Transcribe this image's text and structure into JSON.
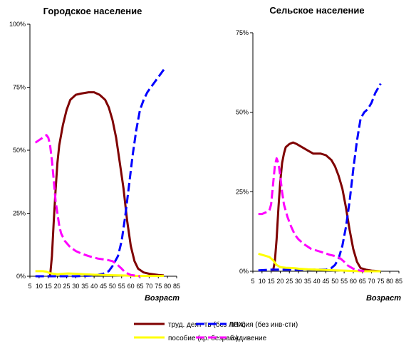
{
  "chart_data": [
    {
      "type": "line",
      "title": "Городское население",
      "xlabel": "Возраст",
      "ylabel": "",
      "x_ticks": [
        5,
        10,
        15,
        20,
        25,
        30,
        35,
        40,
        45,
        50,
        55,
        60,
        65,
        70,
        75,
        80,
        85
      ],
      "y_ticks": [
        "0%",
        "25%",
        "50%",
        "75%",
        "100%"
      ],
      "xlim": [
        5,
        85
      ],
      "ylim": [
        0,
        100
      ],
      "series": [
        {
          "key": "labor",
          "color": "#7f0000",
          "dash": "solid",
          "points": [
            [
              16,
              0
            ],
            [
              17,
              8
            ],
            [
              18,
              22
            ],
            [
              19,
              34
            ],
            [
              20,
              45
            ],
            [
              21,
              52
            ],
            [
              23,
              60
            ],
            [
              25,
              66
            ],
            [
              27,
              70
            ],
            [
              30,
              72
            ],
            [
              33,
              72.5
            ],
            [
              37,
              73
            ],
            [
              40,
              73
            ],
            [
              43,
              72
            ],
            [
              46,
              70
            ],
            [
              48,
              67
            ],
            [
              50,
              62
            ],
            [
              52,
              55
            ],
            [
              54,
              45
            ],
            [
              56,
              35
            ],
            [
              58,
              22
            ],
            [
              60,
              12
            ],
            [
              62,
              6
            ],
            [
              64,
              3
            ],
            [
              67,
              1.5
            ],
            [
              70,
              1
            ],
            [
              75,
              0.5
            ],
            [
              78,
              0.3
            ]
          ]
        },
        {
          "key": "pension",
          "color": "#0000ff",
          "dash": "dashed",
          "points": [
            [
              8,
              0
            ],
            [
              30,
              0
            ],
            [
              40,
              0.3
            ],
            [
              45,
              1
            ],
            [
              48,
              2
            ],
            [
              50,
              4
            ],
            [
              53,
              8
            ],
            [
              55,
              14
            ],
            [
              57,
              24
            ],
            [
              59,
              36
            ],
            [
              61,
              48
            ],
            [
              63,
              58
            ],
            [
              65,
              66
            ],
            [
              67,
              70
            ],
            [
              69,
              73
            ],
            [
              71,
              75
            ],
            [
              73,
              77
            ],
            [
              75,
              79
            ],
            [
              77,
              81
            ],
            [
              78,
              82
            ]
          ]
        },
        {
          "key": "benefit",
          "color": "#ffff00",
          "dash": "solid",
          "points": [
            [
              8,
              2
            ],
            [
              12,
              2
            ],
            [
              14,
              1.8
            ],
            [
              16,
              1.2
            ],
            [
              18,
              1
            ],
            [
              20,
              0.8
            ],
            [
              23,
              1
            ],
            [
              26,
              1.1
            ],
            [
              30,
              1
            ],
            [
              35,
              0.8
            ],
            [
              40,
              0.6
            ],
            [
              45,
              0.5
            ],
            [
              50,
              0.4
            ],
            [
              55,
              0.3
            ],
            [
              60,
              0.2
            ],
            [
              65,
              0.1
            ],
            [
              70,
              0.1
            ],
            [
              78,
              0.1
            ]
          ]
        },
        {
          "key": "dependent",
          "color": "#ff00ff",
          "dash": "dashed",
          "points": [
            [
              8,
              53
            ],
            [
              10,
              54
            ],
            [
              12,
              55
            ],
            [
              14,
              56
            ],
            [
              15,
              55
            ],
            [
              16,
              52
            ],
            [
              17,
              46
            ],
            [
              18,
              38
            ],
            [
              19,
              30
            ],
            [
              20,
              25
            ],
            [
              21,
              20
            ],
            [
              22,
              17
            ],
            [
              24,
              14
            ],
            [
              27,
              11.5
            ],
            [
              30,
              10
            ],
            [
              33,
              9
            ],
            [
              37,
              8
            ],
            [
              42,
              7
            ],
            [
              47,
              6.5
            ],
            [
              50,
              6
            ],
            [
              52,
              5
            ],
            [
              55,
              3
            ],
            [
              57,
              1.5
            ],
            [
              60,
              0.5
            ],
            [
              63,
              0.2
            ],
            [
              65,
              0
            ]
          ]
        }
      ]
    },
    {
      "type": "line",
      "title": "Сельское население",
      "xlabel": "Возраст",
      "ylabel": "",
      "x_ticks": [
        5,
        10,
        15,
        20,
        25,
        30,
        35,
        40,
        45,
        50,
        55,
        60,
        65,
        70,
        75,
        80,
        85
      ],
      "y_ticks": [
        "0%",
        "25%",
        "50%",
        "75%"
      ],
      "xlim": [
        5,
        85
      ],
      "ylim": [
        0,
        75
      ],
      "series": [
        {
          "key": "labor",
          "color": "#7f0000",
          "dash": "solid",
          "points": [
            [
              16,
              0
            ],
            [
              17,
              3
            ],
            [
              18,
              10
            ],
            [
              19,
              20
            ],
            [
              20,
              28
            ],
            [
              21,
              34
            ],
            [
              22,
              37
            ],
            [
              23,
              39
            ],
            [
              25,
              40
            ],
            [
              27,
              40.5
            ],
            [
              29,
              40
            ],
            [
              32,
              39
            ],
            [
              35,
              38
            ],
            [
              38,
              37
            ],
            [
              42,
              37
            ],
            [
              45,
              36.5
            ],
            [
              48,
              35
            ],
            [
              50,
              33
            ],
            [
              52,
              30
            ],
            [
              54,
              26
            ],
            [
              56,
              20
            ],
            [
              58,
              13
            ],
            [
              60,
              7
            ],
            [
              62,
              3
            ],
            [
              64,
              1
            ],
            [
              67,
              0.5
            ],
            [
              70,
              0.2
            ],
            [
              75,
              0
            ]
          ]
        },
        {
          "key": "pension",
          "color": "#0000ff",
          "dash": "dashed",
          "points": [
            [
              8,
              0.3
            ],
            [
              15,
              0.5
            ],
            [
              30,
              0.5
            ],
            [
              40,
              0.5
            ],
            [
              45,
              0.5
            ],
            [
              48,
              1
            ],
            [
              50,
              2
            ],
            [
              52,
              4
            ],
            [
              54,
              8
            ],
            [
              56,
              14
            ],
            [
              58,
              22
            ],
            [
              60,
              32
            ],
            [
              62,
              41
            ],
            [
              64,
              48
            ],
            [
              66,
              50
            ],
            [
              68,
              51
            ],
            [
              70,
              53
            ],
            [
              72,
              56
            ],
            [
              74,
              58
            ],
            [
              75,
              59
            ]
          ]
        },
        {
          "key": "benefit",
          "color": "#ffff00",
          "dash": "solid",
          "points": [
            [
              8,
              5.5
            ],
            [
              11,
              5
            ],
            [
              14,
              4.5
            ],
            [
              16,
              3.5
            ],
            [
              18,
              2
            ],
            [
              20,
              1.3
            ],
            [
              23,
              1.1
            ],
            [
              27,
              1
            ],
            [
              30,
              0.8
            ],
            [
              35,
              0.6
            ],
            [
              40,
              0.5
            ],
            [
              45,
              0.4
            ],
            [
              50,
              0.3
            ],
            [
              55,
              0.2
            ],
            [
              60,
              0.1
            ],
            [
              65,
              0
            ],
            [
              75,
              0
            ]
          ]
        },
        {
          "key": "dependent",
          "color": "#ff00ff",
          "dash": "dashed",
          "points": [
            [
              8,
              18
            ],
            [
              10,
              18
            ],
            [
              12,
              18.5
            ],
            [
              14,
              19
            ],
            [
              15,
              21
            ],
            [
              16,
              27
            ],
            [
              17,
              33
            ],
            [
              18,
              35.5
            ],
            [
              19,
              34
            ],
            [
              20,
              30
            ],
            [
              21,
              25
            ],
            [
              22,
              21
            ],
            [
              24,
              17
            ],
            [
              26,
              14
            ],
            [
              28,
              11.5
            ],
            [
              30,
              10
            ],
            [
              33,
              8.5
            ],
            [
              37,
              7
            ],
            [
              40,
              6.5
            ],
            [
              44,
              5.8
            ],
            [
              47,
              5.2
            ],
            [
              50,
              4.8
            ],
            [
              53,
              4
            ],
            [
              55,
              3
            ],
            [
              57,
              1.8
            ],
            [
              60,
              0.8
            ],
            [
              63,
              0.3
            ],
            [
              66,
              0
            ]
          ]
        }
      ]
    }
  ],
  "legend": [
    {
      "key": "labor",
      "label": "труд. деят-ть (без ЛПХ)",
      "color": "#7f0000",
      "dash": "solid"
    },
    {
      "key": "pension",
      "label": "пенсия (без инв-сти)",
      "color": "#0000ff",
      "dash": "dashed"
    },
    {
      "key": "benefit",
      "label": "пособие (кр. безраб.)",
      "color": "#ffff00",
      "dash": "solid"
    },
    {
      "key": "dependent",
      "label": "иждивение",
      "color": "#ff00ff",
      "dash": "dashed"
    }
  ]
}
